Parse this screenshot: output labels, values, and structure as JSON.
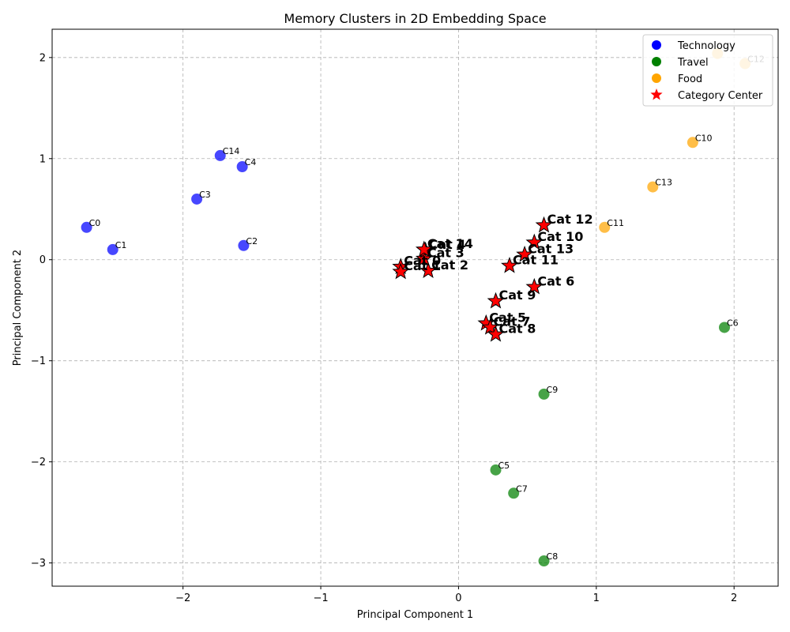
{
  "chart_data": {
    "type": "scatter",
    "title": "Memory Clusters in 2D Embedding Space",
    "xlabel": "Principal Component 1",
    "ylabel": "Principal Component 2",
    "xlim": [
      -2.95,
      2.32
    ],
    "ylim": [
      -3.23,
      2.28
    ],
    "xticks": [
      -2,
      -1,
      0,
      1,
      2
    ],
    "yticks": [
      -3,
      -2,
      -1,
      0,
      1,
      2
    ],
    "grid": true,
    "legend_position": "top-right",
    "colors": {
      "Technology": "#0000ff",
      "Travel": "#008000",
      "Food": "#ffa500",
      "Category Center": "#ff0000"
    },
    "legend": [
      "Technology",
      "Travel",
      "Food",
      "Category Center"
    ],
    "series": [
      {
        "name": "Technology",
        "points": [
          {
            "label": "C0",
            "x": -2.7,
            "y": 0.32
          },
          {
            "label": "C1",
            "x": -2.51,
            "y": 0.1
          },
          {
            "label": "C2",
            "x": -1.56,
            "y": 0.14
          },
          {
            "label": "C3",
            "x": -1.9,
            "y": 0.6
          },
          {
            "label": "C4",
            "x": -1.57,
            "y": 0.92
          },
          {
            "label": "C14",
            "x": -1.73,
            "y": 1.03
          }
        ]
      },
      {
        "name": "Travel",
        "points": [
          {
            "label": "C5",
            "x": 0.27,
            "y": -2.08
          },
          {
            "label": "C6",
            "x": 1.93,
            "y": -0.67
          },
          {
            "label": "C7",
            "x": 0.4,
            "y": -2.31
          },
          {
            "label": "C8",
            "x": 0.62,
            "y": -2.98
          },
          {
            "label": "C9",
            "x": 0.62,
            "y": -1.33
          }
        ]
      },
      {
        "name": "Food",
        "points": [
          {
            "label": "C10",
            "x": 1.7,
            "y": 1.16
          },
          {
            "label": "C11",
            "x": 1.06,
            "y": 0.32
          },
          {
            "label": "C12",
            "x": 2.08,
            "y": 1.94
          },
          {
            "label": "C13",
            "x": 1.41,
            "y": 0.72
          },
          {
            "label": "",
            "x": 1.88,
            "y": 2.04
          }
        ]
      },
      {
        "name": "Category Center",
        "points": [
          {
            "label": "Cat 0",
            "x": -0.42,
            "y": -0.07
          },
          {
            "label": "Cat 1",
            "x": -0.42,
            "y": -0.12
          },
          {
            "label": "Cat 2",
            "x": -0.22,
            "y": -0.11
          },
          {
            "label": "Cat 3",
            "x": -0.25,
            "y": 0.01
          },
          {
            "label": "Cat 4",
            "x": -0.24,
            "y": 0.09
          },
          {
            "label": "Cat 14",
            "x": -0.25,
            "y": 0.1
          },
          {
            "label": "Cat 5",
            "x": 0.2,
            "y": -0.63
          },
          {
            "label": "Cat 7",
            "x": 0.23,
            "y": -0.67
          },
          {
            "label": "Cat 8",
            "x": 0.27,
            "y": -0.74
          },
          {
            "label": "Cat 9",
            "x": 0.27,
            "y": -0.41
          },
          {
            "label": "Cat 6",
            "x": 0.55,
            "y": -0.27
          },
          {
            "label": "Cat 10",
            "x": 0.55,
            "y": 0.17
          },
          {
            "label": "Cat 11",
            "x": 0.37,
            "y": -0.06
          },
          {
            "label": "Cat 12",
            "x": 0.62,
            "y": 0.34
          },
          {
            "label": "Cat 13",
            "x": 0.48,
            "y": 0.05
          }
        ]
      }
    ]
  }
}
